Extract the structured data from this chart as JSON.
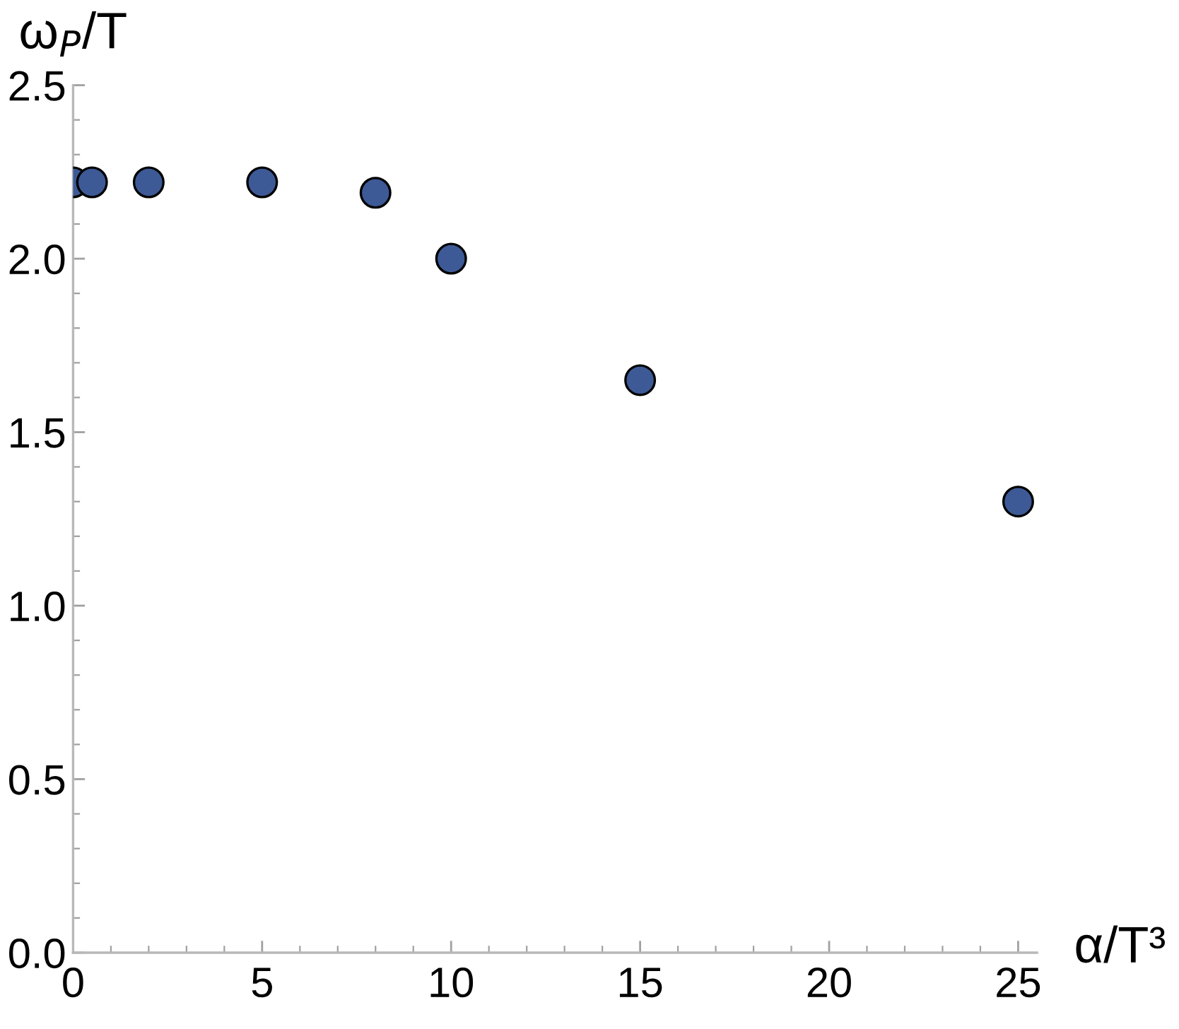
{
  "chart_data": {
    "type": "scatter",
    "xlabel": "α/T³",
    "ylabel": "ω$_{P}$/T",
    "x": [
      0,
      0.5,
      2,
      5,
      8,
      10,
      15,
      25
    ],
    "values": [
      2.22,
      2.22,
      2.22,
      2.22,
      2.19,
      2.0,
      1.65,
      1.3
    ],
    "color": "#3d5a96",
    "marker": "circle",
    "xlim": [
      0,
      25.5
    ],
    "ylim": [
      0,
      2.5
    ],
    "xticks": [
      0,
      {
        "value": 1,
        "label": null
      },
      {
        "value": 2,
        "label": null
      },
      {
        "value": 3,
        "label": null
      },
      {
        "value": 4,
        "label": null
      },
      5,
      {
        "value": 6,
        "label": null
      },
      {
        "value": 7,
        "label": null
      },
      {
        "value": 8,
        "label": null
      },
      {
        "value": 9,
        "label": null
      },
      10,
      {
        "value": 11,
        "label": null
      },
      {
        "value": 12,
        "label": null
      },
      {
        "value": 13,
        "label": null
      },
      {
        "value": 14,
        "label": null
      },
      15,
      {
        "value": 16,
        "label": null
      },
      {
        "value": 17,
        "label": null
      },
      {
        "value": 18,
        "label": null
      },
      {
        "value": 19,
        "label": null
      },
      20,
      {
        "value": 21,
        "label": null
      },
      {
        "value": 22,
        "label": null
      },
      {
        "value": 23,
        "label": null
      },
      {
        "value": 24,
        "label": null
      },
      25
    ],
    "yticks": [
      {
        "value": 0,
        "label": "0.0"
      },
      {
        "value": 0.1,
        "label": null
      },
      {
        "value": 0.2,
        "label": null
      },
      {
        "value": 0.3,
        "label": null
      },
      {
        "value": 0.4,
        "label": null
      },
      {
        "value": 0.5,
        "label": "0.5"
      },
      {
        "value": 0.6,
        "label": null
      },
      {
        "value": 0.7,
        "label": null
      },
      {
        "value": 0.8,
        "label": null
      },
      {
        "value": 0.9,
        "label": null
      },
      {
        "value": 1.0,
        "label": "1.0"
      },
      {
        "value": 1.1,
        "label": null
      },
      {
        "value": 1.2,
        "label": null
      },
      {
        "value": 1.3,
        "label": null
      },
      {
        "value": 1.4,
        "label": null
      },
      {
        "value": 1.5,
        "label": "1.5"
      },
      {
        "value": 1.6,
        "label": null
      },
      {
        "value": 1.7,
        "label": null
      },
      {
        "value": 1.8,
        "label": null
      },
      {
        "value": 1.9,
        "label": null
      },
      {
        "value": 2.0,
        "label": "2.0"
      },
      {
        "value": 2.1,
        "label": null
      },
      {
        "value": 2.2,
        "label": null
      },
      {
        "value": 2.3,
        "label": null
      },
      {
        "value": 2.4,
        "label": null
      },
      {
        "value": 2.5,
        "label": "2.5"
      }
    ],
    "grid": false,
    "legend": false
  }
}
